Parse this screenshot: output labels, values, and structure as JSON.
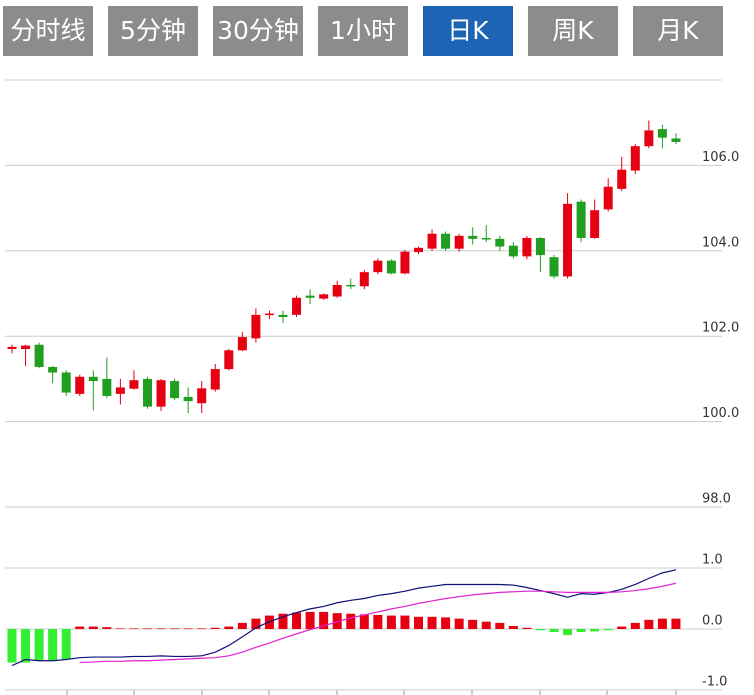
{
  "tabs": [
    "分时线",
    "5分钟",
    "30分钟",
    "1小时",
    "日K",
    "周K",
    "月K"
  ],
  "active_tab": 4,
  "chart_data": [
    {
      "type": "candlestick",
      "up_color": "#e60012",
      "down_color": "#1f9e1f",
      "open": [
        101.7,
        101.7,
        101.8,
        101.28,
        101.15,
        100.65,
        101.05,
        101.0,
        100.65,
        100.77,
        101.0,
        100.35,
        100.95,
        100.58,
        100.43,
        100.75,
        101.23,
        101.67,
        101.95,
        102.5,
        102.5,
        102.5,
        102.95,
        102.88,
        102.93,
        103.2,
        103.17,
        103.5,
        103.77,
        103.47,
        103.97,
        104.05,
        104.4,
        104.05,
        104.35,
        104.3,
        104.28,
        104.12,
        103.87,
        104.3,
        103.85,
        103.4,
        105.15,
        104.3,
        104.97,
        105.45,
        105.88,
        106.45,
        106.85,
        106.63
      ],
      "high": [
        101.8,
        101.8,
        101.85,
        101.3,
        101.2,
        101.1,
        101.2,
        101.5,
        101.0,
        101.2,
        101.05,
        101.0,
        101.0,
        100.8,
        100.95,
        101.35,
        101.7,
        102.1,
        102.65,
        102.6,
        102.6,
        102.95,
        103.1,
        103.0,
        103.3,
        103.35,
        103.55,
        103.82,
        103.8,
        104.02,
        104.1,
        104.5,
        104.45,
        104.4,
        104.55,
        104.6,
        104.35,
        104.2,
        104.35,
        104.32,
        103.9,
        105.35,
        105.2,
        105.2,
        105.7,
        106.2,
        106.5,
        107.05,
        106.95,
        106.75
      ],
      "low": [
        101.6,
        101.3,
        101.25,
        100.9,
        100.6,
        100.6,
        100.26,
        100.55,
        100.4,
        100.75,
        100.3,
        100.25,
        100.5,
        100.2,
        100.2,
        100.7,
        101.2,
        101.65,
        101.85,
        102.4,
        102.3,
        102.45,
        102.75,
        102.85,
        102.9,
        103.1,
        103.1,
        103.45,
        103.45,
        103.45,
        103.92,
        104.0,
        104.0,
        103.98,
        104.15,
        104.2,
        104.0,
        103.82,
        103.8,
        103.5,
        103.35,
        103.35,
        104.2,
        104.28,
        104.92,
        105.4,
        105.8,
        106.4,
        106.4,
        106.5
      ],
      "close": [
        101.75,
        101.78,
        101.28,
        101.15,
        100.68,
        101.05,
        100.95,
        100.6,
        100.8,
        100.97,
        100.35,
        100.97,
        100.55,
        100.48,
        100.78,
        101.23,
        101.67,
        101.98,
        102.5,
        102.53,
        102.45,
        102.9,
        102.9,
        102.98,
        103.2,
        103.18,
        103.5,
        103.77,
        103.47,
        103.98,
        104.07,
        104.4,
        104.05,
        104.35,
        104.28,
        104.27,
        104.1,
        103.87,
        104.3,
        103.9,
        103.4,
        105.1,
        104.3,
        104.95,
        105.5,
        105.9,
        106.45,
        106.82,
        106.65,
        106.55
      ],
      "ylim": [
        98,
        108
      ],
      "yticks": [
        {
          "value": 98,
          "label": "98.0"
        },
        {
          "value": 100,
          "label": "100.0"
        },
        {
          "value": 102,
          "label": "102.0"
        },
        {
          "value": 104,
          "label": "104.0"
        },
        {
          "value": 106,
          "label": "106.0"
        }
      ],
      "grid": true
    },
    {
      "type": "macd",
      "up_color": "#e60012",
      "down_color": "#33ee33",
      "values": [
        -0.55,
        -0.55,
        -0.52,
        -0.52,
        -0.5,
        0.04,
        0.04,
        0.03,
        0.01,
        0.01,
        0.01,
        0.01,
        0.01,
        0.01,
        0.01,
        0.02,
        0.04,
        0.1,
        0.17,
        0.22,
        0.25,
        0.27,
        0.28,
        0.28,
        0.26,
        0.25,
        0.24,
        0.23,
        0.22,
        0.22,
        0.2,
        0.2,
        0.19,
        0.17,
        0.15,
        0.12,
        0.1,
        0.05,
        0.02,
        -0.02,
        -0.05,
        -0.1,
        -0.05,
        -0.04,
        -0.02,
        0.04,
        0.1,
        0.15,
        0.17,
        0.17
      ],
      "lines": [
        {
          "color": "#10107a",
          "values": [
            -0.6,
            -0.5,
            -0.52,
            -0.52,
            -0.5,
            -0.47,
            -0.46,
            -0.46,
            -0.46,
            -0.45,
            -0.45,
            -0.44,
            -0.45,
            -0.45,
            -0.44,
            -0.38,
            -0.27,
            -0.13,
            0.02,
            0.12,
            0.2,
            0.27,
            0.33,
            0.37,
            0.43,
            0.47,
            0.5,
            0.55,
            0.58,
            0.62,
            0.67,
            0.7,
            0.73,
            0.73,
            0.73,
            0.73,
            0.73,
            0.72,
            0.68,
            0.63,
            0.58,
            0.52,
            0.58,
            0.57,
            0.6,
            0.65,
            0.73,
            0.83,
            0.92,
            0.97
          ]
        },
        {
          "color": "#e020d0",
          "values": [
            null,
            null,
            null,
            null,
            null,
            -0.55,
            -0.54,
            -0.53,
            -0.53,
            -0.52,
            -0.52,
            -0.51,
            -0.5,
            -0.49,
            -0.48,
            -0.47,
            -0.44,
            -0.38,
            -0.3,
            -0.23,
            -0.15,
            -0.08,
            -0.01,
            0.05,
            0.12,
            0.18,
            0.23,
            0.28,
            0.33,
            0.37,
            0.42,
            0.46,
            0.5,
            0.53,
            0.56,
            0.58,
            0.6,
            0.61,
            0.62,
            0.62,
            0.61,
            0.6,
            0.6,
            0.6,
            0.6,
            0.61,
            0.63,
            0.66,
            0.7,
            0.75
          ]
        }
      ],
      "ylim": [
        -1,
        2
      ],
      "yticks": [
        {
          "value": -1,
          "label": "-1.0"
        },
        {
          "value": 0,
          "label": "0.0"
        },
        {
          "value": 1,
          "label": "1.0"
        }
      ],
      "grid": true
    }
  ]
}
